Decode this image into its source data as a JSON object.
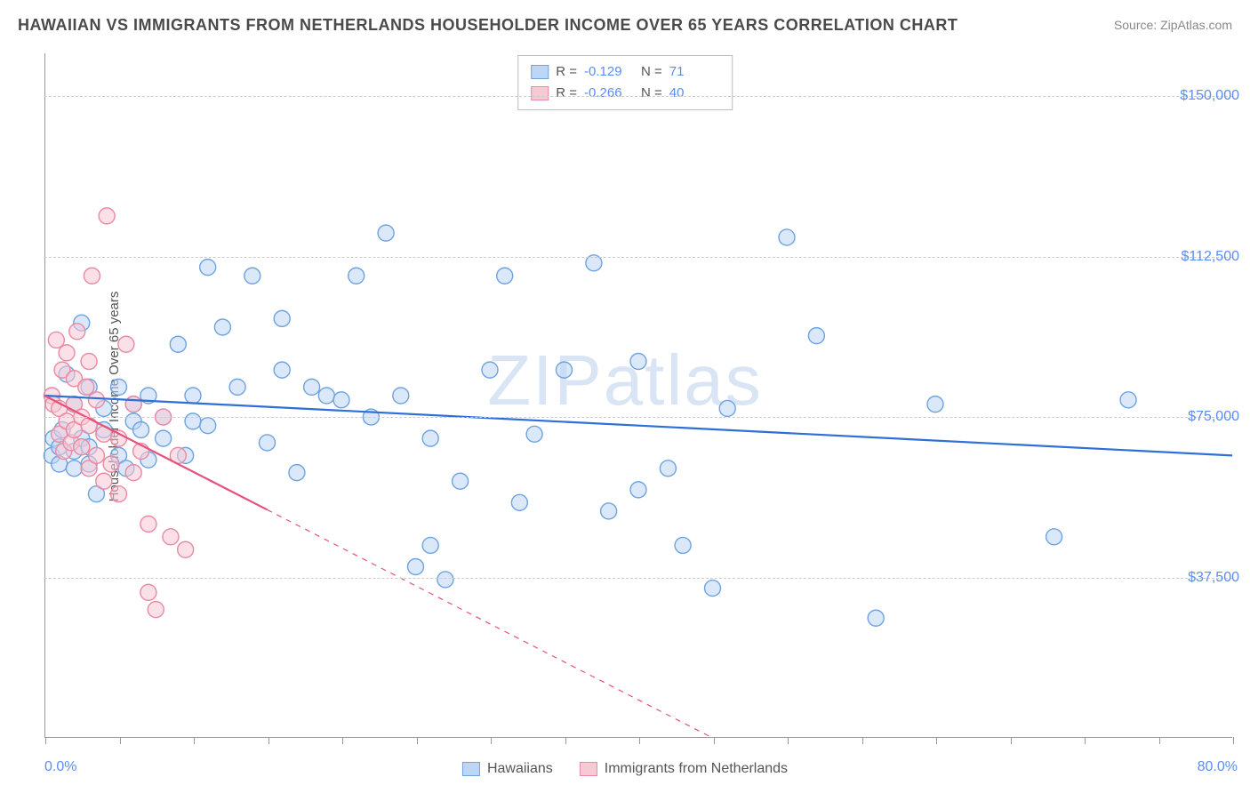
{
  "title": "HAWAIIAN VS IMMIGRANTS FROM NETHERLANDS HOUSEHOLDER INCOME OVER 65 YEARS CORRELATION CHART",
  "source": "Source: ZipAtlas.com",
  "watermark": "ZIPatlas",
  "chart": {
    "type": "scatter",
    "background_color": "#ffffff",
    "grid_color": "#cccccc",
    "axis_color": "#999999",
    "ylabel": "Householder Income Over 65 years",
    "label_fontsize": 15,
    "xlim": [
      0,
      80
    ],
    "ylim": [
      0,
      160000
    ],
    "xticks_minor": [
      0,
      5,
      10,
      15,
      20,
      25,
      30,
      35,
      40,
      45,
      50,
      55,
      60,
      65,
      70,
      75,
      80
    ],
    "yticks": [
      {
        "v": 37500,
        "label": "$37,500"
      },
      {
        "v": 75000,
        "label": "$75,000"
      },
      {
        "v": 112500,
        "label": "$112,500"
      },
      {
        "v": 150000,
        "label": "$150,000"
      }
    ],
    "xtick_labels": {
      "left": "0.0%",
      "right": "80.0%"
    },
    "marker_radius": 9,
    "marker_stroke_width": 1.4,
    "line_width": 2.2,
    "series": [
      {
        "name": "Hawaiians",
        "color_fill": "#bcd6f5",
        "color_stroke": "#6fa3e0",
        "color_line": "#2e6fd8",
        "R": "-0.129",
        "N": "71",
        "trend": {
          "x1": 0,
          "y1": 80000,
          "x2": 80,
          "y2": 66000,
          "solid_to_x": 80
        },
        "points": [
          [
            0.5,
            66000
          ],
          [
            0.6,
            70000
          ],
          [
            1,
            64000
          ],
          [
            1,
            68000
          ],
          [
            1.2,
            72000
          ],
          [
            1.5,
            85000
          ],
          [
            2,
            63000
          ],
          [
            2,
            67000
          ],
          [
            2,
            78000
          ],
          [
            2.5,
            70000
          ],
          [
            2.5,
            97000
          ],
          [
            3,
            64000
          ],
          [
            3,
            68000
          ],
          [
            3,
            82000
          ],
          [
            3.5,
            57000
          ],
          [
            4,
            72000
          ],
          [
            4,
            77000
          ],
          [
            5,
            66000
          ],
          [
            5,
            82000
          ],
          [
            5.5,
            63000
          ],
          [
            6,
            74000
          ],
          [
            6,
            78000
          ],
          [
            6.5,
            72000
          ],
          [
            7,
            65000
          ],
          [
            7,
            80000
          ],
          [
            8,
            75000
          ],
          [
            8,
            70000
          ],
          [
            9,
            92000
          ],
          [
            9.5,
            66000
          ],
          [
            10,
            80000
          ],
          [
            10,
            74000
          ],
          [
            11,
            73000
          ],
          [
            11,
            110000
          ],
          [
            12,
            96000
          ],
          [
            13,
            82000
          ],
          [
            14,
            108000
          ],
          [
            15,
            69000
          ],
          [
            16,
            86000
          ],
          [
            16,
            98000
          ],
          [
            17,
            62000
          ],
          [
            18,
            82000
          ],
          [
            19,
            80000
          ],
          [
            20,
            79000
          ],
          [
            21,
            108000
          ],
          [
            22,
            75000
          ],
          [
            23,
            118000
          ],
          [
            24,
            80000
          ],
          [
            25,
            40000
          ],
          [
            26,
            45000
          ],
          [
            26,
            70000
          ],
          [
            27,
            37000
          ],
          [
            28,
            60000
          ],
          [
            30,
            86000
          ],
          [
            31,
            108000
          ],
          [
            32,
            55000
          ],
          [
            33,
            71000
          ],
          [
            35,
            86000
          ],
          [
            37,
            111000
          ],
          [
            38,
            53000
          ],
          [
            40,
            58000
          ],
          [
            40,
            88000
          ],
          [
            42,
            63000
          ],
          [
            43,
            45000
          ],
          [
            45,
            35000
          ],
          [
            46,
            77000
          ],
          [
            50,
            117000
          ],
          [
            52,
            94000
          ],
          [
            56,
            28000
          ],
          [
            60,
            78000
          ],
          [
            68,
            47000
          ],
          [
            73,
            79000
          ]
        ]
      },
      {
        "name": "Immigrants from Netherlands",
        "color_fill": "#f7c9d4",
        "color_stroke": "#e98aa3",
        "color_line": "#e5527a",
        "R": "-0.266",
        "N": "40",
        "trend": {
          "x1": 0,
          "y1": 80000,
          "x2": 45,
          "y2": 0,
          "solid_to_x": 15
        },
        "points": [
          [
            0.5,
            80000
          ],
          [
            0.6,
            78000
          ],
          [
            0.8,
            93000
          ],
          [
            1,
            71000
          ],
          [
            1,
            77000
          ],
          [
            1.2,
            86000
          ],
          [
            1.3,
            67000
          ],
          [
            1.5,
            74000
          ],
          [
            1.5,
            90000
          ],
          [
            1.8,
            69000
          ],
          [
            2,
            72000
          ],
          [
            2,
            78000
          ],
          [
            2,
            84000
          ],
          [
            2.2,
            95000
          ],
          [
            2.5,
            68000
          ],
          [
            2.5,
            75000
          ],
          [
            2.8,
            82000
          ],
          [
            3,
            63000
          ],
          [
            3,
            73000
          ],
          [
            3,
            88000
          ],
          [
            3.2,
            108000
          ],
          [
            3.5,
            66000
          ],
          [
            3.5,
            79000
          ],
          [
            4,
            60000
          ],
          [
            4,
            71000
          ],
          [
            4.2,
            122000
          ],
          [
            4.5,
            64000
          ],
          [
            5,
            57000
          ],
          [
            5,
            70000
          ],
          [
            5.5,
            92000
          ],
          [
            6,
            62000
          ],
          [
            6,
            78000
          ],
          [
            6.5,
            67000
          ],
          [
            7,
            50000
          ],
          [
            7,
            34000
          ],
          [
            7.5,
            30000
          ],
          [
            8,
            75000
          ],
          [
            8.5,
            47000
          ],
          [
            9,
            66000
          ],
          [
            9.5,
            44000
          ]
        ]
      }
    ],
    "legend_bottom": [
      {
        "label": "Hawaiians",
        "fill": "#bcd6f5",
        "stroke": "#6fa3e0"
      },
      {
        "label": "Immigrants from Netherlands",
        "fill": "#f7c9d4",
        "stroke": "#e98aa3"
      }
    ]
  }
}
